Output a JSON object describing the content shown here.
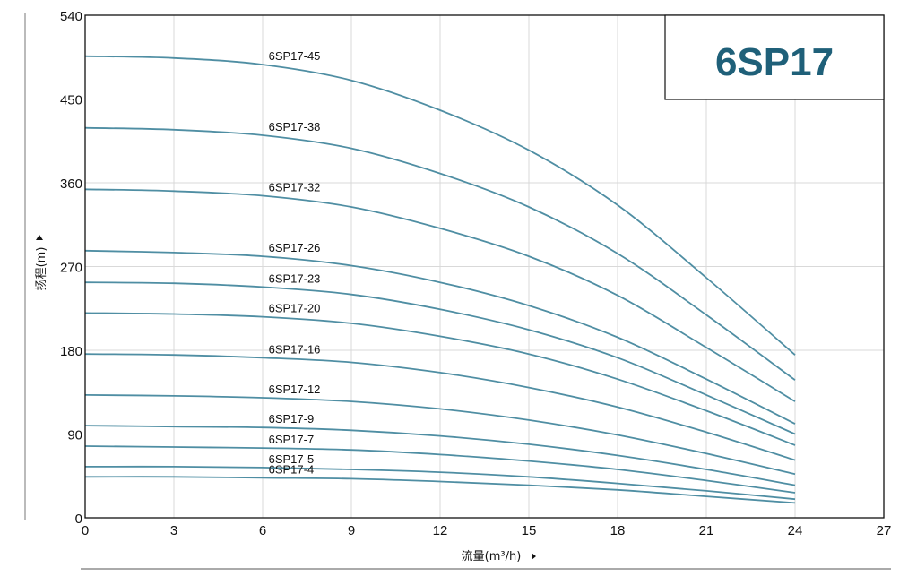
{
  "colors": {
    "curve": "#4f8ea3",
    "grid": "#d9d9d9",
    "frame": "#111111",
    "model": "#1f6079"
  },
  "model_title": "6SP17",
  "chart_data": {
    "type": "line",
    "title": "6SP17",
    "xlabel": "流量(m³/h)",
    "ylabel": "扬程(m)",
    "xlim": [
      0,
      27
    ],
    "ylim": [
      0,
      540
    ],
    "xticks": [
      "0",
      "3",
      "6",
      "9",
      "12",
      "15",
      "18",
      "21",
      "24",
      "27"
    ],
    "yticks": [
      "0",
      "90",
      "180",
      "270",
      "360",
      "450",
      "540"
    ],
    "x": [
      0,
      3,
      6,
      9,
      12,
      15,
      18,
      21,
      24
    ],
    "series": [
      {
        "name": "6SP17-45",
        "values": [
          496,
          494,
          487,
          470,
          438,
          395,
          336,
          258,
          175
        ]
      },
      {
        "name": "6SP17-38",
        "values": [
          419,
          417,
          411,
          397,
          370,
          334,
          284,
          218,
          148
        ]
      },
      {
        "name": "6SP17-32",
        "values": [
          353,
          351,
          346,
          334,
          311,
          281,
          239,
          183,
          125
        ]
      },
      {
        "name": "6SP17-26",
        "values": [
          287,
          285,
          281,
          271,
          253,
          228,
          194,
          149,
          101
        ]
      },
      {
        "name": "6SP17-23",
        "values": [
          253,
          252,
          248,
          240,
          224,
          202,
          172,
          132,
          90
        ]
      },
      {
        "name": "6SP17-20",
        "values": [
          220,
          219,
          216,
          209,
          195,
          176,
          149,
          115,
          78
        ]
      },
      {
        "name": "6SP17-16",
        "values": [
          176,
          175,
          172,
          167,
          156,
          140,
          119,
          92,
          62
        ]
      },
      {
        "name": "6SP17-12",
        "values": [
          132,
          131,
          129,
          125,
          117,
          105,
          89,
          69,
          47
        ]
      },
      {
        "name": "6SP17-9",
        "values": [
          99,
          98,
          97,
          94,
          88,
          79,
          67,
          52,
          35
        ]
      },
      {
        "name": "6SP17-7",
        "values": [
          77,
          76,
          75,
          73,
          68,
          61,
          52,
          40,
          27
        ]
      },
      {
        "name": "6SP17-5",
        "values": [
          55,
          55,
          54,
          52,
          49,
          44,
          37,
          29,
          20
        ]
      },
      {
        "name": "6SP17-4",
        "values": [
          44,
          44,
          43,
          42,
          39,
          35,
          30,
          23,
          16
        ]
      }
    ]
  }
}
